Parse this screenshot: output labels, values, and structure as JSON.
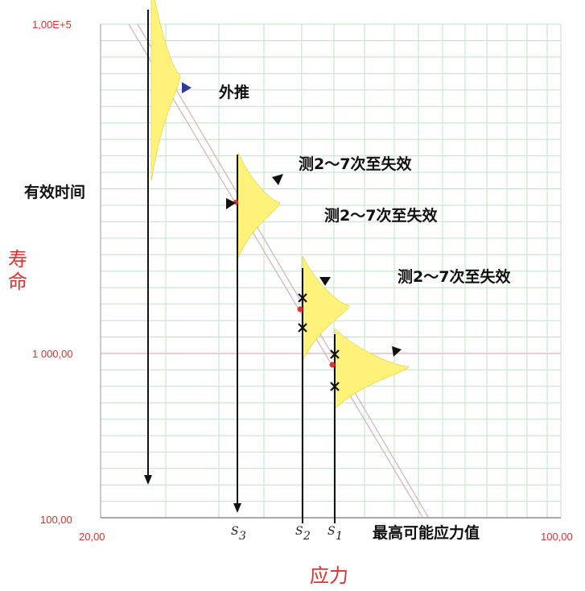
{
  "chart_data": {
    "type": "scatter",
    "x_scale": "log",
    "y_scale": "log",
    "xlim": [
      20,
      100
    ],
    "ylim": [
      100,
      100000
    ],
    "x_tick_labels": [
      "20,00",
      "100,00"
    ],
    "y_tick_labels": [
      "100,00",
      "1 000,00",
      "1,00E+5"
    ],
    "xlabel": "应力",
    "ylabel": "寿命",
    "grid": true,
    "stress_labels": [
      {
        "base": "S",
        "sub": "3"
      },
      {
        "base": "S",
        "sub": "2"
      },
      {
        "base": "S",
        "sub": "1"
      }
    ],
    "annotations": {
      "extrapolate": "外推",
      "test_failure_1": "测2～7次至失效",
      "test_failure_2": "测2～7次至失效",
      "test_failure_3": "测2～7次至失效",
      "effective_time": "有效时间",
      "max_stress": "最高可能应力值"
    },
    "colors": {
      "axis_text": "#e0312f",
      "grid": "#bfe3c4",
      "distribution": "#fff27a",
      "failure_mark": "#111111",
      "mean_point": "#e0312f"
    }
  }
}
